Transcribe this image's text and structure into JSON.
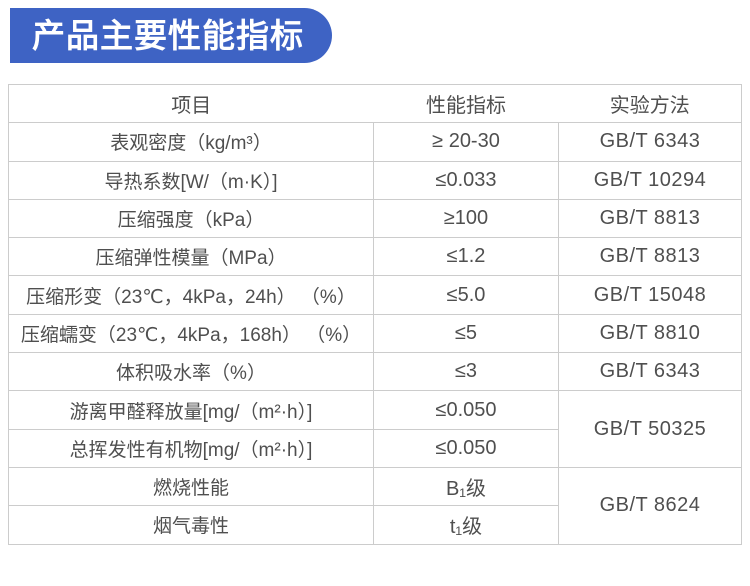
{
  "banner": {
    "title": "产品主要性能指标"
  },
  "colors": {
    "banner_bg": "#3e63c4",
    "banner_text": "#ffffff",
    "table_border": "#cccccc",
    "table_text": "#4f4f4f",
    "page_bg": "#ffffff"
  },
  "table": {
    "headers": [
      "项目",
      "性能指标",
      "实验方法"
    ],
    "rows": [
      {
        "item": "表观密度（kg/m³）",
        "value": "≥ 20-30",
        "method": "GB/T 6343"
      },
      {
        "item": "导热系数[W/（m·K）]",
        "value": "≤0.033",
        "method": "GB/T 10294"
      },
      {
        "item": "压缩强度（kPa）",
        "value": "≥100",
        "method": "GB/T 8813"
      },
      {
        "item": "压缩弹性模量（MPa）",
        "value": "≤1.2",
        "method": "GB/T 8813"
      },
      {
        "item": "压缩形变（23℃，4kPa，24h） （%）",
        "value": "≤5.0",
        "method": "GB/T 15048"
      },
      {
        "item": "压缩蠕变（23℃，4kPa，168h） （%）",
        "value": "≤5",
        "method": "GB/T 8810"
      },
      {
        "item": "体积吸水率（%）",
        "value": "≤3",
        "method": "GB/T 6343"
      },
      {
        "item": "游离甲醛释放量[mg/（m²·h）]",
        "value": "≤0.050",
        "method": "GB/T 50325",
        "method_rowspan": 2
      },
      {
        "item": "总挥发性有机物[mg/（m²·h）]",
        "value": "≤0.050"
      },
      {
        "item": "燃烧性能",
        "value": "B₁级",
        "method": "GB/T 8624",
        "method_rowspan": 2
      },
      {
        "item": "烟气毒性",
        "value": "t₁级"
      }
    ]
  }
}
